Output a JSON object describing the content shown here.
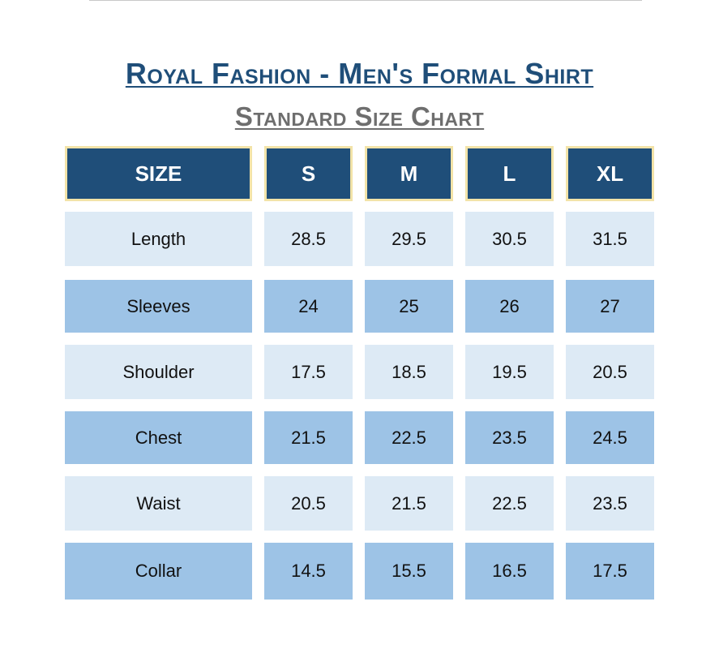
{
  "title": "Royal Fashion - Men's Formal Shirt",
  "subtitle": "Standard Size Chart",
  "colors": {
    "title": "#1f4e79",
    "subtitle": "#6e6e6e",
    "header_bg": "#1f4e79",
    "header_border": "#f2e3a8",
    "row_light": "#ddeaf5",
    "row_dark": "#9dc3e6"
  },
  "table": {
    "header": [
      "SIZE",
      "S",
      "M",
      "L",
      "XL"
    ],
    "rows": [
      {
        "label": "Length",
        "values": [
          "28.5",
          "29.5",
          "30.5",
          "31.5"
        ]
      },
      {
        "label": "Sleeves",
        "values": [
          "24",
          "25",
          "26",
          "27"
        ]
      },
      {
        "label": "Shoulder",
        "values": [
          "17.5",
          "18.5",
          "19.5",
          "20.5"
        ]
      },
      {
        "label": "Chest",
        "values": [
          "21.5",
          "22.5",
          "23.5",
          "24.5"
        ]
      },
      {
        "label": "Waist",
        "values": [
          "20.5",
          "21.5",
          "22.5",
          "23.5"
        ]
      },
      {
        "label": "Collar",
        "values": [
          "14.5",
          "15.5",
          "16.5",
          "17.5"
        ]
      }
    ]
  }
}
